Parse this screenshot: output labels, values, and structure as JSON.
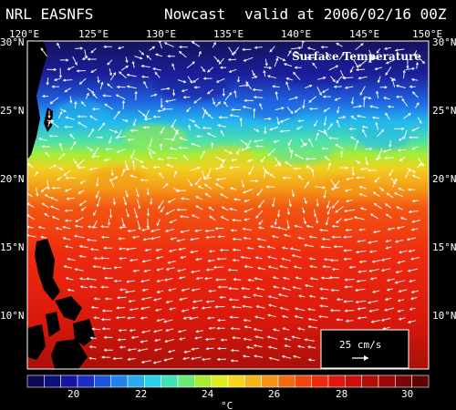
{
  "header": {
    "product": "NRL EASNFS",
    "run_type": "Nowcast",
    "valid": "valid at 2006/02/16 00Z"
  },
  "map": {
    "field_label": "Surface Temperature",
    "lon_ticks": [
      "120°E",
      "125°E",
      "130°E",
      "135°E",
      "140°E",
      "145°E",
      "150°E"
    ],
    "lat_ticks_left": [
      "30°N",
      "25°N",
      "20°N",
      "15°N",
      "10°N"
    ],
    "lat_ticks_right": [
      "30°N",
      "25°N",
      "20°N",
      "15°N",
      "10°N"
    ],
    "lon_range": [
      120,
      150
    ],
    "lat_range": [
      5.5,
      30
    ],
    "temperature_bands_lat": [
      {
        "lat": 30,
        "color": "#14125a"
      },
      {
        "lat": 27.5,
        "color": "#1b1f9a"
      },
      {
        "lat": 25.5,
        "color": "#1f62e0"
      },
      {
        "lat": 24.0,
        "color": "#22b7ee"
      },
      {
        "lat": 22.5,
        "color": "#4fe0a8"
      },
      {
        "lat": 21.5,
        "color": "#a6ee34"
      },
      {
        "lat": 20.5,
        "color": "#f0d020"
      },
      {
        "lat": 19.0,
        "color": "#f49a18"
      },
      {
        "lat": 17.5,
        "color": "#f25512"
      },
      {
        "lat": 14.0,
        "color": "#ee2a10"
      },
      {
        "lat": 9.0,
        "color": "#d8180c"
      },
      {
        "lat": 5.5,
        "color": "#a8100a"
      }
    ]
  },
  "scale_arrow": {
    "label": "25 cm/s"
  },
  "colorbar": {
    "colors": [
      "#0b0b55",
      "#0f0f7a",
      "#1414a0",
      "#1a2ec4",
      "#1f55de",
      "#2281ea",
      "#25abee",
      "#2ad0e6",
      "#3fe3b8",
      "#6ae878",
      "#a6ee34",
      "#dcee1e",
      "#f5d81e",
      "#f5b41a",
      "#f59018",
      "#f26a14",
      "#f04612",
      "#ec2a10",
      "#e0180c",
      "#cc100a",
      "#b40c08",
      "#9a0808",
      "#7a0606",
      "#5a0404"
    ],
    "tick_labels": [
      "20",
      "22",
      "24",
      "26",
      "28",
      "30"
    ],
    "unit": "°C"
  }
}
